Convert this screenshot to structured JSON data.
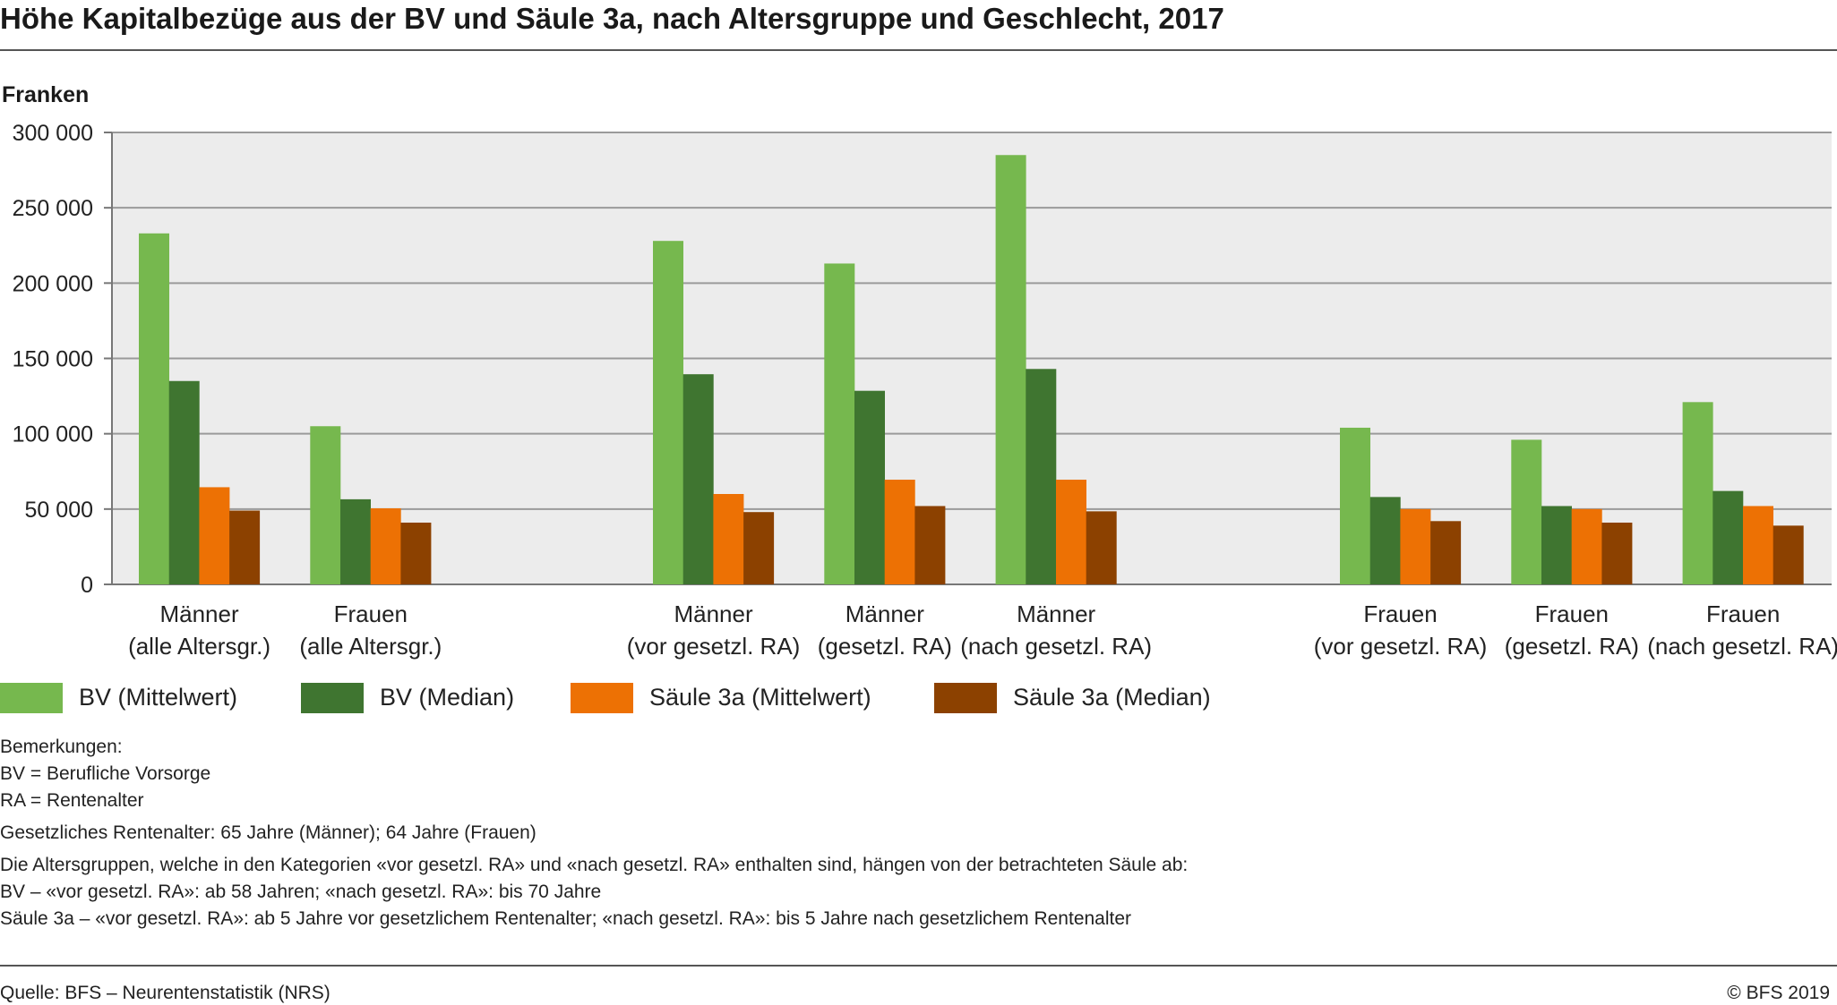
{
  "title": "Höhe Kapitalbezüge aus der BV und Säule 3a, nach Altersgruppe und Geschlecht, 2017",
  "unit_label": "Franken",
  "notes": {
    "heading": "Bemerkungen:",
    "lines": [
      "BV = Berufliche Vorsorge",
      "RA = Rentenalter",
      "Gesetzliches Rentenalter: 65 Jahre (Männer); 64 Jahre (Frauen)",
      "Die Altersgruppen, welche in den Kategorien «vor gesetzl. RA» und «nach gesetzl. RA» enthalten sind, hängen von der betrachteten Säule ab:",
      "BV – «vor gesetzl. RA»: ab 58 Jahren; «nach gesetzl. RA»: bis 70 Jahre",
      "Säule 3a – «vor gesetzl. RA»: ab 5 Jahre vor gesetzlichem Rentenalter; «nach gesetzl. RA»: bis 5 Jahre nach gesetzlichem Rentenalter"
    ]
  },
  "footer": {
    "source": "Quelle: BFS – Neurentenstatistik (NRS)",
    "copyright": "© BFS 2019"
  },
  "chart_data": {
    "type": "bar",
    "title": "Höhe Kapitalbezüge aus der BV und Säule 3a, nach Altersgruppe und Geschlecht, 2017",
    "ylabel": "Franken",
    "ylim": [
      0,
      300000
    ],
    "yticks": [
      0,
      50000,
      100000,
      150000,
      200000,
      250000,
      300000
    ],
    "ytick_labels": [
      "0",
      "50 000",
      "100 000",
      "150 000",
      "200 000",
      "250 000",
      "300 000"
    ],
    "grid": true,
    "legend_position": "bottom",
    "categories": [
      [
        "Männer",
        "(alle Altersgr.)"
      ],
      [
        "Frauen",
        "(alle Altersgr.)"
      ],
      [
        "Männer",
        "(vor gesetzl. RA)"
      ],
      [
        "Männer",
        "(gesetzl. RA)"
      ],
      [
        "Männer",
        "(nach gesetzl. RA)"
      ],
      [
        "Frauen",
        "(vor gesetzl. RA)"
      ],
      [
        "Frauen",
        "(gesetzl. RA)"
      ],
      [
        "Frauen",
        "(nach gesetzl. RA)"
      ]
    ],
    "series": [
      {
        "name": "BV (Mittelwert)",
        "color": "#76b84e",
        "values": [
          233000,
          105000,
          228000,
          213000,
          285000,
          104000,
          96000,
          121000
        ]
      },
      {
        "name": "BV (Median)",
        "color": "#3f7530",
        "values": [
          135000,
          56500,
          139500,
          128500,
          143000,
          58000,
          52000,
          62000
        ]
      },
      {
        "name": "Säule 3a (Mittelwert)",
        "color": "#ed7104",
        "values": [
          64500,
          50500,
          60000,
          69500,
          69500,
          50000,
          50000,
          52000
        ]
      },
      {
        "name": "Säule 3a (Median)",
        "color": "#8c4100",
        "values": [
          49000,
          41000,
          48000,
          52000,
          48500,
          42000,
          41000,
          39000
        ]
      }
    ]
  }
}
